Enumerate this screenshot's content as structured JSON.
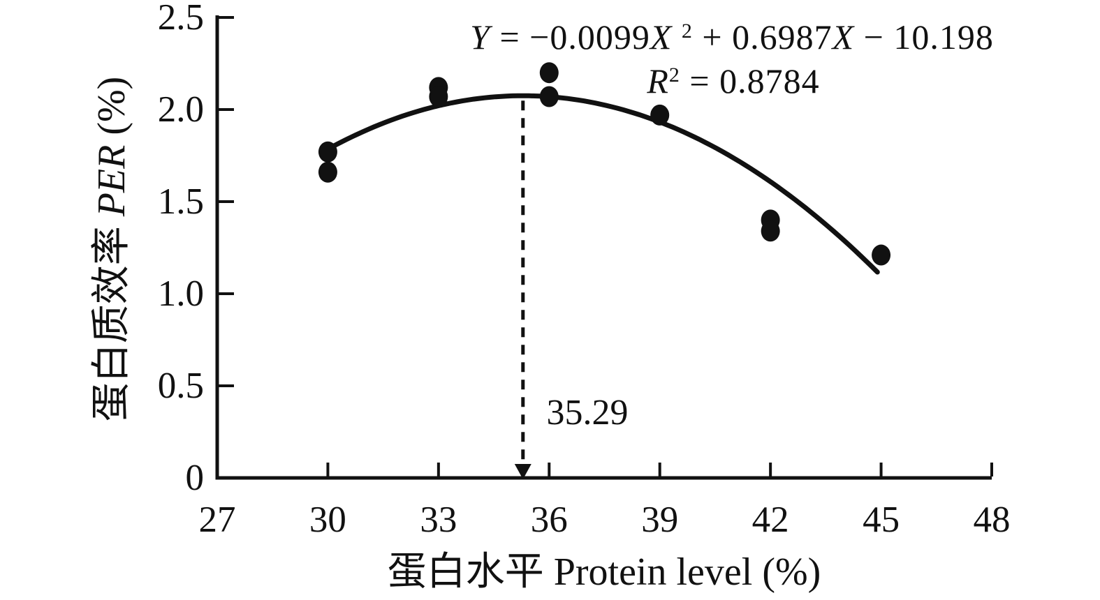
{
  "chart_data": {
    "type": "scatter",
    "title": "",
    "xlabel": "蛋白水平 Protein level (%)",
    "ylabel": "蛋白质效率 PER (%)",
    "xlim": [
      27,
      48
    ],
    "ylim": [
      0,
      2.5
    ],
    "x_ticks": [
      "27",
      "30",
      "33",
      "36",
      "39",
      "42",
      "45",
      "48"
    ],
    "y_ticks": [
      "0",
      "0.5",
      "1.0",
      "1.5",
      "2.0",
      "2.5"
    ],
    "grid": false,
    "legend": "none",
    "marker": {
      "shape": "circle",
      "color": "#111111"
    },
    "points": [
      {
        "x": 30,
        "y": 1.77
      },
      {
        "x": 30,
        "y": 1.66
      },
      {
        "x": 33,
        "y": 2.12
      },
      {
        "x": 33,
        "y": 2.07
      },
      {
        "x": 36,
        "y": 2.2
      },
      {
        "x": 36,
        "y": 2.07
      },
      {
        "x": 39,
        "y": 1.97
      },
      {
        "x": 42,
        "y": 1.4
      },
      {
        "x": 42,
        "y": 1.34
      },
      {
        "x": 45,
        "y": 1.21
      }
    ],
    "fit_curve": {
      "type": "quadratic",
      "equation": "Y = −0.0099X² + 0.6987X − 10.198",
      "r_squared": "R² = 0.8784",
      "coefficients": {
        "a": -0.0099,
        "b": 0.6987,
        "c": -10.198
      },
      "draw": {
        "vertex_x": 35.29,
        "vertex_y": 2.075,
        "a": -0.01037,
        "x_start": 30.05,
        "x_end": 44.95
      },
      "color": "#111111"
    },
    "annotation": {
      "label": "35.29",
      "x": 35.29,
      "style": "dashed-vertical-arrow-to-x-axis"
    }
  },
  "styled_text": {
    "equation_line1": [
      {
        "text": "Y",
        "italic": true
      },
      {
        "text": " = −0.0099",
        "italic": false
      },
      {
        "text": "X",
        "italic": true
      },
      {
        "text": " ",
        "italic": false
      },
      {
        "text": "2",
        "sup": true
      },
      {
        "text": " + 0.6987",
        "italic": false
      },
      {
        "text": "X",
        "italic": true
      },
      {
        "text": " − 10.198",
        "italic": false
      }
    ],
    "equation_line2": [
      {
        "text": "R",
        "italic": true
      },
      {
        "text": "2",
        "sup": true
      },
      {
        "text": " = 0.8784",
        "italic": false
      }
    ],
    "y_axis_title": [
      {
        "text": "蛋白质效率 ",
        "italic": false
      },
      {
        "text": "PER",
        "italic": true
      },
      {
        "text": " (%)",
        "italic": false
      }
    ],
    "x_axis_title": [
      {
        "text": "蛋白水平 Protein level (%)",
        "italic": false
      }
    ]
  }
}
